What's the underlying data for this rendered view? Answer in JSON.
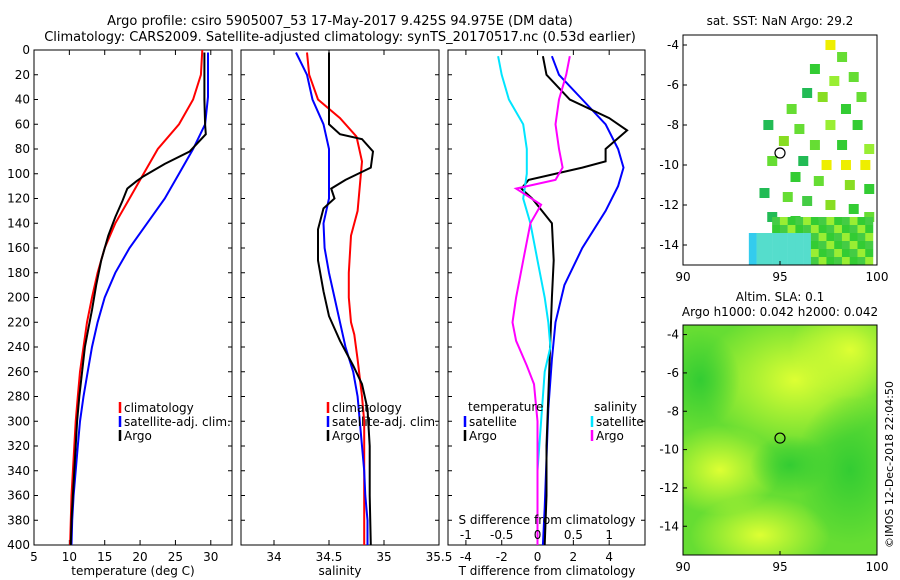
{
  "figure": {
    "title_line1": "Argo profile: csiro 5905007_53 17-May-2017 9.425S 94.975E (DM data)",
    "title_line2": "Climatology: CARS2009. Satellite-adjusted climatology: synTS_20170517.nc (0.53d earlier)",
    "credit": "©IMOS 12-Dec-2018 22:04:50"
  },
  "colors": {
    "climatology": "#ff0000",
    "satellite": "#0000ff",
    "argo": "#000000",
    "sat_salinity": "#00e5ff",
    "argo_salinity": "#ff00ff"
  },
  "chart_data": [
    {
      "id": "temperature",
      "type": "line",
      "xlabel": "temperature (deg C)",
      "ylabel": "depth",
      "xlim": [
        5,
        33
      ],
      "ylim": [
        400,
        0
      ],
      "xticks": [
        5,
        10,
        15,
        20,
        25,
        30
      ],
      "yticks": [
        0,
        20,
        40,
        60,
        80,
        100,
        120,
        140,
        160,
        180,
        200,
        220,
        240,
        260,
        280,
        300,
        320,
        340,
        360,
        380,
        400
      ],
      "legend": [
        "climatology",
        "satellite-adj. clim.",
        "Argo"
      ],
      "series": [
        {
          "name": "climatology",
          "color": "#ff0000",
          "points": [
            [
              28.8,
              0
            ],
            [
              28.6,
              20
            ],
            [
              27.5,
              40
            ],
            [
              25.5,
              60
            ],
            [
              22.5,
              80
            ],
            [
              20.5,
              100
            ],
            [
              18.5,
              120
            ],
            [
              16.5,
              140
            ],
            [
              15,
              160
            ],
            [
              14,
              180
            ],
            [
              13.2,
              200
            ],
            [
              12.5,
              220
            ],
            [
              12,
              240
            ],
            [
              11.5,
              260
            ],
            [
              11.2,
              280
            ],
            [
              10.9,
              300
            ],
            [
              10.7,
              320
            ],
            [
              10.5,
              340
            ],
            [
              10.3,
              360
            ],
            [
              10.2,
              380
            ],
            [
              10.1,
              400
            ]
          ]
        },
        {
          "name": "satellite-adj. clim.",
          "color": "#0000ff",
          "points": [
            [
              29.6,
              2
            ],
            [
              29.6,
              20
            ],
            [
              29.6,
              38
            ],
            [
              29.2,
              60
            ],
            [
              27.5,
              80
            ],
            [
              25.5,
              100
            ],
            [
              23.5,
              120
            ],
            [
              21,
              140
            ],
            [
              18.5,
              160
            ],
            [
              16.5,
              180
            ],
            [
              15,
              200
            ],
            [
              14,
              220
            ],
            [
              13.2,
              240
            ],
            [
              12.6,
              260
            ],
            [
              12,
              280
            ],
            [
              11.5,
              300
            ],
            [
              11.2,
              320
            ],
            [
              10.9,
              340
            ],
            [
              10.6,
              360
            ],
            [
              10.4,
              380
            ],
            [
              10.3,
              400
            ]
          ]
        },
        {
          "name": "Argo",
          "color": "#000000",
          "points": [
            [
              29.1,
              2
            ],
            [
              29.1,
              40
            ],
            [
              29.2,
              60
            ],
            [
              29.3,
              68
            ],
            [
              27,
              82
            ],
            [
              23.5,
              92
            ],
            [
              20.5,
              102
            ],
            [
              19.5,
              106
            ],
            [
              18.2,
              112
            ],
            [
              17.5,
              122
            ],
            [
              16.5,
              135
            ],
            [
              15.5,
              150
            ],
            [
              14.5,
              170
            ],
            [
              13.8,
              190
            ],
            [
              13.2,
              210
            ],
            [
              12.7,
              225
            ],
            [
              12.2,
              240
            ],
            [
              11.8,
              260
            ],
            [
              11.4,
              280
            ],
            [
              11.1,
              300
            ],
            [
              10.9,
              320
            ],
            [
              10.7,
              340
            ],
            [
              10.5,
              360
            ],
            [
              10.3,
              380
            ],
            [
              10.2,
              400
            ]
          ]
        }
      ]
    },
    {
      "id": "salinity",
      "type": "line",
      "xlabel": "salinity",
      "ylabel": "depth",
      "xlim": [
        33.7,
        35.5
      ],
      "ylim": [
        400,
        0
      ],
      "xticks": [
        34,
        34.5,
        35,
        35.5
      ],
      "legend": [
        "climatology",
        "satellite-adj. clim.",
        "Argo"
      ],
      "series": [
        {
          "name": "climatology",
          "color": "#ff0000",
          "points": [
            [
              34.3,
              2
            ],
            [
              34.32,
              20
            ],
            [
              34.4,
              40
            ],
            [
              34.6,
              55
            ],
            [
              34.75,
              70
            ],
            [
              34.8,
              90
            ],
            [
              34.78,
              110
            ],
            [
              34.76,
              130
            ],
            [
              34.7,
              150
            ],
            [
              34.68,
              180
            ],
            [
              34.68,
              200
            ],
            [
              34.7,
              220
            ],
            [
              34.73,
              230
            ],
            [
              34.76,
              250
            ],
            [
              34.8,
              280
            ],
            [
              34.82,
              300
            ],
            [
              34.82,
              320
            ],
            [
              34.82,
              340
            ],
            [
              34.82,
              360
            ],
            [
              34.82,
              380
            ],
            [
              34.82,
              400
            ]
          ]
        },
        {
          "name": "satellite-adj. clim.",
          "color": "#0000ff",
          "points": [
            [
              34.2,
              2
            ],
            [
              34.3,
              20
            ],
            [
              34.35,
              40
            ],
            [
              34.45,
              60
            ],
            [
              34.5,
              80
            ],
            [
              34.5,
              100
            ],
            [
              34.5,
              120
            ],
            [
              34.45,
              140
            ],
            [
              34.46,
              160
            ],
            [
              34.5,
              180
            ],
            [
              34.55,
              200
            ],
            [
              34.6,
              220
            ],
            [
              34.65,
              240
            ],
            [
              34.72,
              260
            ],
            [
              34.76,
              280
            ],
            [
              34.78,
              300
            ],
            [
              34.8,
              320
            ],
            [
              34.82,
              340
            ],
            [
              34.83,
              360
            ],
            [
              34.85,
              380
            ],
            [
              34.85,
              400
            ]
          ]
        },
        {
          "name": "Argo",
          "color": "#000000",
          "points": [
            [
              34.5,
              2
            ],
            [
              34.5,
              60
            ],
            [
              34.6,
              68
            ],
            [
              34.8,
              72
            ],
            [
              34.9,
              82
            ],
            [
              34.88,
              95
            ],
            [
              34.65,
              105
            ],
            [
              34.52,
              112
            ],
            [
              34.55,
              120
            ],
            [
              34.45,
              128
            ],
            [
              34.4,
              145
            ],
            [
              34.4,
              170
            ],
            [
              34.45,
              195
            ],
            [
              34.5,
              215
            ],
            [
              34.6,
              235
            ],
            [
              34.72,
              255
            ],
            [
              34.8,
              270
            ],
            [
              34.85,
              290
            ],
            [
              34.87,
              320
            ],
            [
              34.87,
              360
            ],
            [
              34.88,
              400
            ]
          ]
        }
      ]
    },
    {
      "id": "difference",
      "type": "line",
      "xlabel": "T difference from climatology",
      "second_xlabel": "S difference from climatology",
      "ylabel": "depth",
      "xlim": [
        -5,
        6
      ],
      "ylim": [
        400,
        0
      ],
      "xticks": [
        -4,
        -2,
        0,
        2,
        4
      ],
      "second_xticks": [
        -1,
        -0.5,
        0,
        0.5,
        1
      ],
      "legend_temperature_title": "temperature",
      "legend_salinity_title": "salinity",
      "legend_temperature": [
        "satellite",
        "Argo"
      ],
      "legend_salinity": [
        "satellite",
        "Argo"
      ],
      "series": [
        {
          "name": "temperature satellite",
          "color": "#0000ff",
          "points": [
            [
              0.8,
              5
            ],
            [
              1.2,
              20
            ],
            [
              2.5,
              40
            ],
            [
              3.8,
              60
            ],
            [
              4.5,
              80
            ],
            [
              4.8,
              95
            ],
            [
              4.5,
              110
            ],
            [
              3.8,
              130
            ],
            [
              2.5,
              160
            ],
            [
              1.5,
              190
            ],
            [
              1,
              220
            ],
            [
              0.8,
              250
            ],
            [
              0.6,
              290
            ],
            [
              0.5,
              330
            ],
            [
              0.4,
              370
            ],
            [
              0.3,
              400
            ]
          ]
        },
        {
          "name": "temperature Argo",
          "color": "#000000",
          "points": [
            [
              0.3,
              5
            ],
            [
              0.5,
              20
            ],
            [
              1.8,
              40
            ],
            [
              4,
              55
            ],
            [
              5,
              65
            ],
            [
              3.8,
              80
            ],
            [
              3.8,
              90
            ],
            [
              2.5,
              95
            ],
            [
              -0.5,
              105
            ],
            [
              -0.9,
              112
            ],
            [
              -0.3,
              120
            ],
            [
              0.8,
              140
            ],
            [
              0.9,
              170
            ],
            [
              0.8,
              200
            ],
            [
              0.7,
              240
            ],
            [
              0.6,
              280
            ],
            [
              0.5,
              320
            ],
            [
              0.5,
              360
            ],
            [
              0.4,
              400
            ]
          ]
        },
        {
          "name": "salinity satellite",
          "color": "#00e5ff",
          "points": [
            [
              -0.55,
              5
            ],
            [
              -0.5,
              20
            ],
            [
              -0.4,
              40
            ],
            [
              -0.2,
              60
            ],
            [
              -0.15,
              80
            ],
            [
              -0.15,
              100
            ],
            [
              -0.2,
              120
            ],
            [
              -0.1,
              140
            ],
            [
              0,
              170
            ],
            [
              0.1,
              200
            ],
            [
              0.15,
              220
            ],
            [
              0.18,
              240
            ],
            [
              0.1,
              260
            ],
            [
              0.05,
              300
            ],
            [
              0,
              340
            ],
            [
              0,
              380
            ],
            [
              0,
              400
            ]
          ]
        },
        {
          "name": "salinity Argo",
          "color": "#ff00ff",
          "points": [
            [
              0.45,
              5
            ],
            [
              0.4,
              20
            ],
            [
              0.3,
              40
            ],
            [
              0.25,
              60
            ],
            [
              0.3,
              80
            ],
            [
              0.35,
              95
            ],
            [
              0.25,
              105
            ],
            [
              -0.3,
              112
            ],
            [
              0.05,
              125
            ],
            [
              -0.1,
              140
            ],
            [
              -0.2,
              170
            ],
            [
              -0.3,
              200
            ],
            [
              -0.35,
              220
            ],
            [
              -0.3,
              235
            ],
            [
              -0.15,
              255
            ],
            [
              -0.05,
              270
            ],
            [
              0,
              300
            ],
            [
              0,
              340
            ],
            [
              0,
              380
            ],
            [
              0,
              400
            ]
          ]
        }
      ]
    },
    {
      "id": "sst_map",
      "type": "heatmap",
      "title": "sat. SST: NaN Argo: 29.2",
      "xlim": [
        90,
        100
      ],
      "ylim": [
        -15,
        -3.5
      ],
      "xticks": [
        90,
        95,
        100
      ],
      "yticks": [
        -4,
        -6,
        -8,
        -10,
        -12,
        -14
      ],
      "argo_position": [
        95,
        -9.4
      ]
    },
    {
      "id": "sla_map",
      "type": "heatmap",
      "title_line1": "Altim. SLA: 0.1",
      "title_line2": "Argo h1000: 0.042 h2000: 0.042",
      "xlim": [
        90,
        100
      ],
      "ylim": [
        -15.5,
        -3.5
      ],
      "xticks": [
        90,
        95,
        100
      ],
      "yticks": [
        -4,
        -6,
        -8,
        -10,
        -12,
        -14
      ],
      "argo_position": [
        95,
        -9.4
      ]
    }
  ]
}
